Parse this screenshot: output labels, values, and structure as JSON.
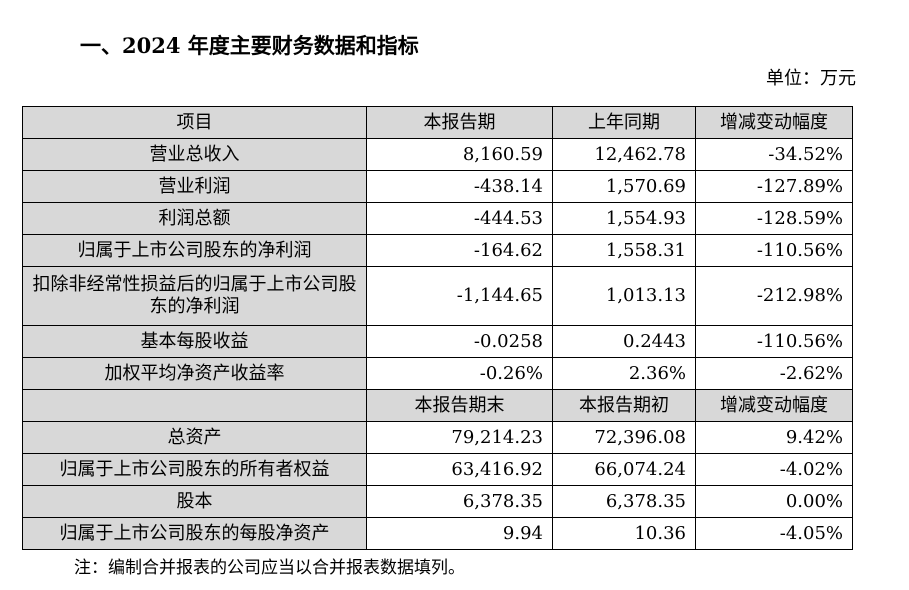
{
  "heading": "一、2024 年度主要财务数据和指标",
  "unit": "单位：万元",
  "table": {
    "header1": [
      "项目",
      "本报告期",
      "上年同期",
      "增减变动幅度"
    ],
    "rows1": [
      {
        "label": "营业总收入",
        "current": "8,160.59",
        "prior": "12,462.78",
        "change": "-34.52%"
      },
      {
        "label": "营业利润",
        "current": "-438.14",
        "prior": "1,570.69",
        "change": "-127.89%"
      },
      {
        "label": "利润总额",
        "current": "-444.53",
        "prior": "1,554.93",
        "change": "-128.59%"
      },
      {
        "label": "归属于上市公司股东的净利润",
        "current": "-164.62",
        "prior": "1,558.31",
        "change": "-110.56%"
      },
      {
        "label": "扣除非经常性损益后的归属于上市公司股东的净利润",
        "current": "-1,144.65",
        "prior": "1,013.13",
        "change": "-212.98%"
      },
      {
        "label": "基本每股收益",
        "current": "-0.0258",
        "prior": "0.2443",
        "change": "-110.56%"
      },
      {
        "label": "加权平均净资产收益率",
        "current": "-0.26%",
        "prior": "2.36%",
        "change": "-2.62%"
      }
    ],
    "header2": [
      "",
      "本报告期末",
      "本报告期初",
      "增减变动幅度"
    ],
    "rows2": [
      {
        "label": "总资产",
        "current": "79,214.23",
        "prior": "72,396.08",
        "change": "9.42%"
      },
      {
        "label": "归属于上市公司股东的所有者权益",
        "current": "63,416.92",
        "prior": "66,074.24",
        "change": "-4.02%"
      },
      {
        "label": "股本",
        "current": "6,378.35",
        "prior": "6,378.35",
        "change": "0.00%"
      },
      {
        "label": "归属于上市公司股东的每股净资产",
        "current": "9.94",
        "prior": "10.36",
        "change": "-4.05%"
      }
    ]
  },
  "note": "注：编制合并报表的公司应当以合并报表数据填列。"
}
